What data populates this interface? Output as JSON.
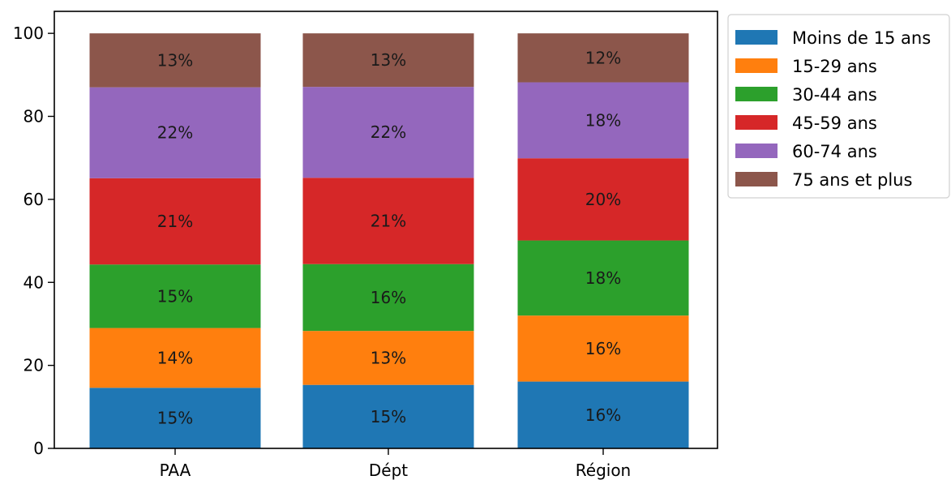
{
  "chart_data": {
    "type": "bar",
    "stacked": true,
    "title": "",
    "xlabel": "",
    "ylabel": "",
    "categories": [
      "PAA",
      "Dépt",
      "Région"
    ],
    "ylim": [
      0,
      100
    ],
    "yticks": [
      0,
      20,
      40,
      60,
      80,
      100
    ],
    "grid": false,
    "legend_position": "outside-top-right",
    "series": [
      {
        "name": "Moins de 15 ans",
        "color": "#1f77b4",
        "values": [
          14.6,
          15.3,
          16.1
        ],
        "labels": [
          "15%",
          "15%",
          "16%"
        ]
      },
      {
        "name": "15-29 ans",
        "color": "#ff7f0e",
        "values": [
          14.4,
          13.0,
          15.9
        ],
        "labels": [
          "14%",
          "13%",
          "16%"
        ]
      },
      {
        "name": "30-44 ans",
        "color": "#2ca02c",
        "values": [
          15.3,
          16.1,
          18.1
        ],
        "labels": [
          "15%",
          "16%",
          "18%"
        ]
      },
      {
        "name": "45-59 ans",
        "color": "#d62728",
        "values": [
          20.8,
          20.8,
          19.8
        ],
        "labels": [
          "21%",
          "21%",
          "20%"
        ]
      },
      {
        "name": "60-74 ans",
        "color": "#9467bd",
        "values": [
          21.9,
          21.9,
          18.3
        ],
        "labels": [
          "22%",
          "22%",
          "18%"
        ]
      },
      {
        "name": "75 ans et plus",
        "color": "#8c564b",
        "values": [
          13.0,
          12.9,
          11.8
        ],
        "labels": [
          "13%",
          "13%",
          "12%"
        ]
      }
    ]
  }
}
